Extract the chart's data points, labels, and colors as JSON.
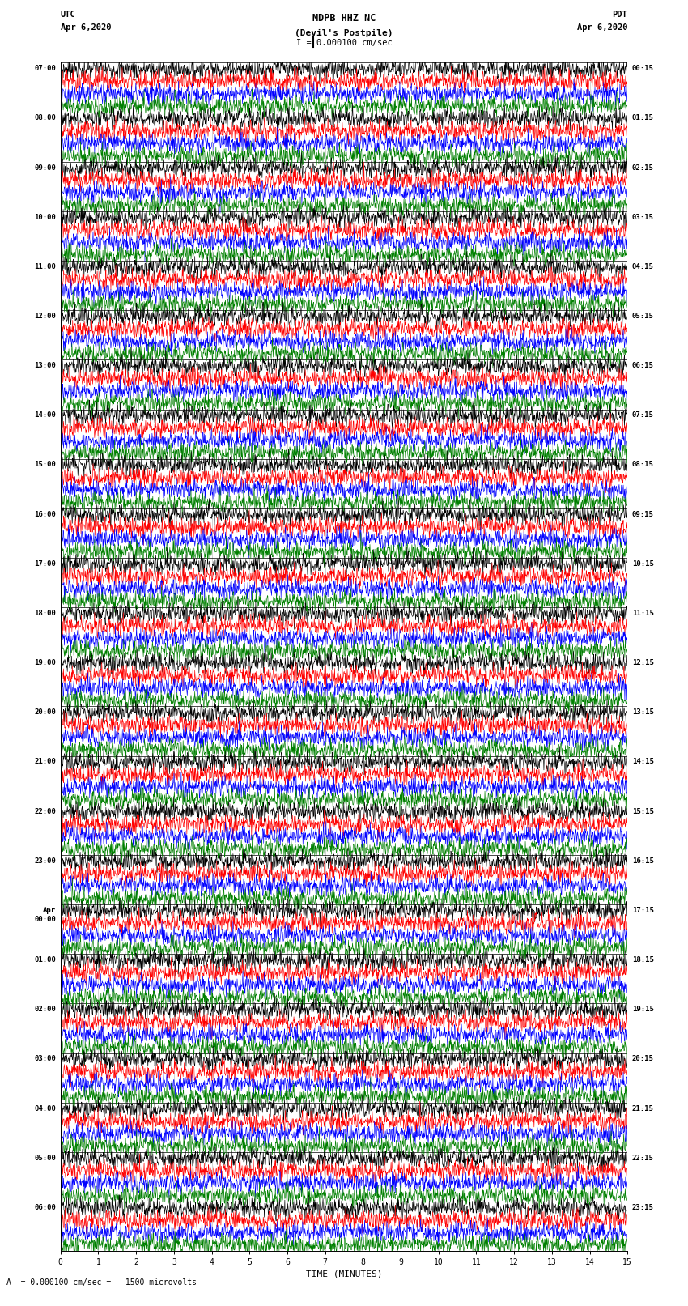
{
  "title_line1": "MDPB HHZ NC",
  "title_line2": "(Devil's Postpile)",
  "scale_bar_label": "I = 0.000100 cm/sec",
  "xlabel": "TIME (MINUTES)",
  "bottom_note": "A  = 0.000100 cm/sec =   1500 microvolts",
  "bg_color": "#ffffff",
  "trace_colors": [
    "black",
    "red",
    "blue",
    "green"
  ],
  "left_times_utc": [
    "07:00",
    "08:00",
    "09:00",
    "10:00",
    "11:00",
    "12:00",
    "13:00",
    "14:00",
    "15:00",
    "16:00",
    "17:00",
    "18:00",
    "19:00",
    "20:00",
    "21:00",
    "22:00",
    "23:00",
    "Apr\n00:00",
    "01:00",
    "02:00",
    "03:00",
    "04:00",
    "05:00",
    "06:00"
  ],
  "right_times_pdt": [
    "00:15",
    "01:15",
    "02:15",
    "03:15",
    "04:15",
    "05:15",
    "06:15",
    "07:15",
    "08:15",
    "09:15",
    "10:15",
    "11:15",
    "12:15",
    "13:15",
    "14:15",
    "15:15",
    "16:15",
    "17:15",
    "18:15",
    "19:15",
    "20:15",
    "21:15",
    "22:15",
    "23:15"
  ],
  "num_rows": 24,
  "traces_per_row": 4,
  "minutes": 15,
  "xmin": 0,
  "xmax": 15,
  "xticks": [
    0,
    1,
    2,
    3,
    4,
    5,
    6,
    7,
    8,
    9,
    10,
    11,
    12,
    13,
    14,
    15
  ],
  "left_header_line1": "UTC",
  "left_header_line2": "Apr 6,2020",
  "right_header_line1": "PDT",
  "right_header_line2": "Apr 6,2020"
}
